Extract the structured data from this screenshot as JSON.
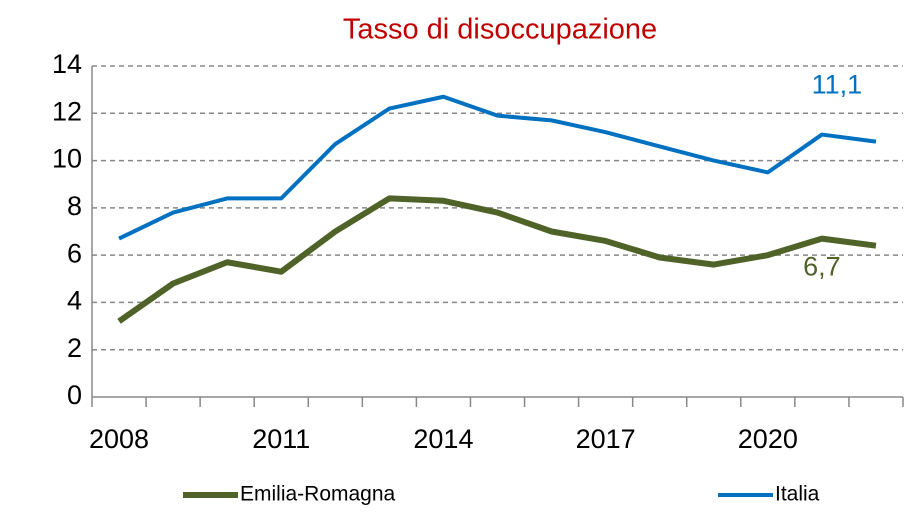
{
  "chart_data": {
    "type": "line",
    "title": "Tasso di disoccupazione",
    "categories": [
      "2008",
      null,
      null,
      "2011",
      null,
      null,
      "2014",
      null,
      null,
      "2017",
      null,
      null,
      "2020",
      null,
      null
    ],
    "series": [
      {
        "name": "Emilia-Romagna",
        "color": "#4f6228",
        "values": [
          3.2,
          4.8,
          5.7,
          5.3,
          7.0,
          8.4,
          8.3,
          7.8,
          7.0,
          6.6,
          5.9,
          5.6,
          6.0,
          6.7,
          6.4
        ],
        "value_labels": [
          null,
          null,
          null,
          null,
          null,
          null,
          null,
          null,
          null,
          null,
          null,
          null,
          null,
          "6,7",
          null
        ]
      },
      {
        "name": "Italia",
        "color": "#0070c0",
        "values": [
          6.7,
          7.8,
          8.4,
          8.4,
          10.7,
          12.2,
          12.7,
          11.9,
          11.7,
          11.2,
          10.6,
          10.0,
          9.5,
          11.1,
          10.8
        ],
        "value_labels": [
          null,
          null,
          null,
          null,
          null,
          null,
          null,
          null,
          null,
          null,
          null,
          null,
          null,
          "11,1",
          null
        ]
      }
    ],
    "ylim": [
      0,
      14
    ],
    "yticks": [
      0,
      2,
      4,
      6,
      8,
      10,
      12,
      14
    ],
    "grid": true,
    "legend": "bottom"
  }
}
